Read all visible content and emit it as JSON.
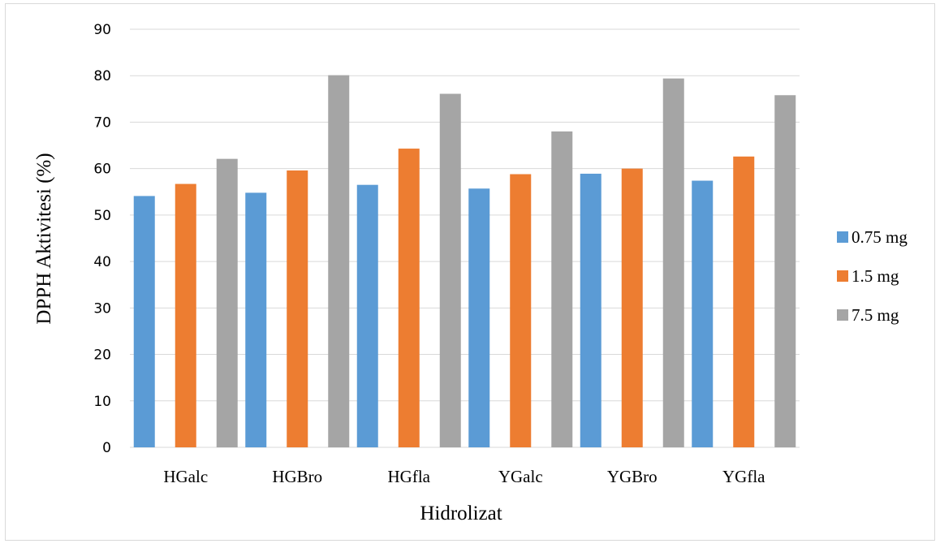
{
  "chart_data": {
    "type": "bar",
    "xlabel": "Hidrolizat",
    "ylabel": "DPPH Aktivitesi (%)",
    "ylim": [
      0,
      90
    ],
    "yticks": [
      0,
      10,
      20,
      30,
      40,
      50,
      60,
      70,
      80,
      90
    ],
    "grid": true,
    "legend_position": "right",
    "categories": [
      "HGalc",
      "HGBro",
      "HGfla",
      "YGalc",
      "YGBro",
      "YGfla"
    ],
    "series": [
      {
        "name": "0.75 mg",
        "color": "#5b9bd5",
        "values": [
          54.1,
          54.8,
          56.5,
          55.7,
          58.9,
          57.4
        ]
      },
      {
        "name": "1.5 mg",
        "color": "#ed7d31",
        "values": [
          56.7,
          59.6,
          64.3,
          58.8,
          60.0,
          62.6
        ]
      },
      {
        "name": "7.5 mg",
        "color": "#a5a5a5",
        "values": [
          62.1,
          80.1,
          76.1,
          68.0,
          79.4,
          75.8
        ]
      }
    ]
  }
}
